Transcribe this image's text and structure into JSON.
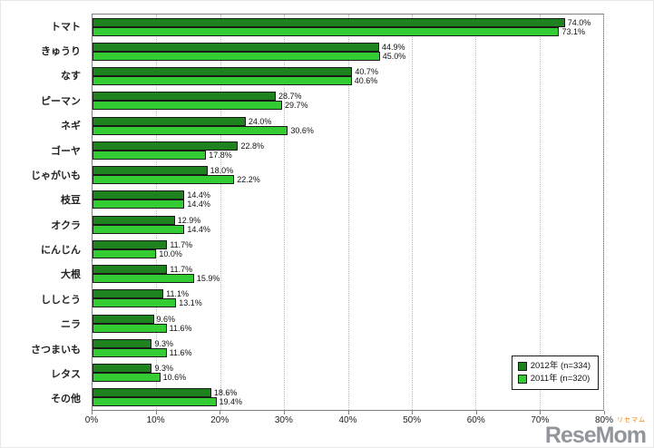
{
  "chart_data": {
    "type": "bar",
    "orientation": "horizontal",
    "title": "",
    "xlabel": "",
    "ylabel": "",
    "xlim": [
      0,
      80
    ],
    "x_ticks": [
      "0%",
      "10%",
      "20%",
      "30%",
      "40%",
      "50%",
      "60%",
      "70%",
      "80%"
    ],
    "grid": true,
    "legend_position": "bottom-right-inside",
    "categories": [
      "トマト",
      "きゅうり",
      "なす",
      "ピーマン",
      "ネギ",
      "ゴーヤ",
      "じゃがいも",
      "枝豆",
      "オクラ",
      "にんじん",
      "大根",
      "ししとう",
      "ニラ",
      "さつまいも",
      "レタス",
      "その他"
    ],
    "series": [
      {
        "name": "2012年 (n=334)",
        "color": "#1e821e",
        "values": [
          74.0,
          44.9,
          40.7,
          28.7,
          24.0,
          22.8,
          18.0,
          14.4,
          12.9,
          11.7,
          11.7,
          11.1,
          9.6,
          9.3,
          9.3,
          18.6
        ]
      },
      {
        "name": "2011年 (n=320)",
        "color": "#33cc33",
        "values": [
          73.1,
          45.0,
          40.6,
          29.7,
          30.6,
          17.8,
          22.2,
          14.4,
          14.4,
          10.0,
          15.9,
          13.1,
          11.6,
          11.6,
          10.6,
          19.4
        ]
      }
    ]
  },
  "watermark": {
    "text": "ReseMom",
    "subtext": "リセマム"
  }
}
